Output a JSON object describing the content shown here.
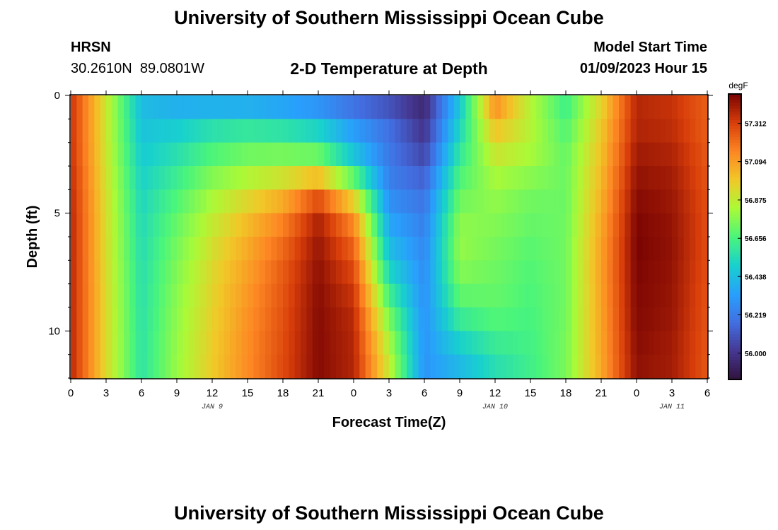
{
  "page": {
    "title_top": "University of Southern Mississippi Ocean Cube",
    "title_bottom": "University of Southern Mississippi Ocean Cube",
    "station_id": "HRSN",
    "station_coords": "30.2610N  89.0801W",
    "chart_title": "2-D Temperature at Depth",
    "model_label": "Model Start Time",
    "model_time": "01/09/2023 Hour 15"
  },
  "chart_data": {
    "type": "heatmap",
    "title": "2-D Temperature at Depth",
    "xlabel": "Forecast Time(Z)",
    "ylabel": "Depth (ft)",
    "x_tick_labels": [
      "0",
      "3",
      "6",
      "9",
      "12",
      "15",
      "18",
      "21",
      "0",
      "3",
      "6",
      "9",
      "12",
      "15",
      "18",
      "21",
      "0",
      "3",
      "6"
    ],
    "date_labels": [
      {
        "text": "JAN 9",
        "hour": 12
      },
      {
        "text": "JAN 10",
        "hour": 36
      },
      {
        "text": "JAN 11",
        "hour": 51
      }
    ],
    "x_range_hours": [
      0,
      54
    ],
    "y_tick_labels": [
      "0",
      "5",
      "10"
    ],
    "y_ticks": [
      0,
      5,
      10
    ],
    "ylim": [
      0,
      12
    ],
    "colorbar": {
      "unit": "degF",
      "tick_labels": [
        "56.000",
        "56.219",
        "56.438",
        "56.656",
        "56.875",
        "57.094",
        "57.312"
      ],
      "ticks": [
        56.0,
        56.219,
        56.438,
        56.656,
        56.875,
        57.094,
        57.312
      ],
      "range": [
        55.85,
        57.48
      ]
    },
    "hours": [
      0,
      3,
      6,
      9,
      12,
      15,
      18,
      21,
      24,
      27,
      30,
      33,
      36,
      39,
      42,
      45,
      48,
      51,
      54
    ],
    "depths_ft": [
      0,
      1,
      2,
      3,
      4,
      5,
      6,
      7,
      8,
      9,
      10,
      11,
      12
    ],
    "values": [
      [
        57.35,
        56.9,
        56.42,
        56.33,
        56.28,
        56.26,
        56.22,
        56.17,
        56.1,
        56.03,
        55.93,
        56.45,
        57.2,
        56.85,
        56.62,
        56.94,
        57.38,
        57.35,
        57.24
      ],
      [
        57.35,
        56.9,
        56.45,
        56.46,
        56.52,
        56.53,
        56.5,
        56.44,
        56.29,
        56.17,
        55.98,
        56.5,
        57.05,
        56.85,
        56.65,
        56.98,
        57.38,
        57.35,
        57.24
      ],
      [
        57.35,
        56.9,
        56.47,
        56.53,
        56.62,
        56.67,
        56.66,
        56.6,
        56.38,
        56.2,
        56.02,
        56.56,
        56.95,
        56.85,
        56.7,
        57.0,
        57.4,
        57.38,
        57.25
      ],
      [
        57.36,
        56.91,
        56.5,
        56.6,
        56.72,
        56.79,
        56.82,
        56.84,
        56.55,
        56.22,
        56.1,
        56.63,
        56.85,
        56.8,
        56.72,
        57.02,
        57.43,
        57.4,
        57.26
      ],
      [
        57.37,
        56.92,
        56.52,
        56.65,
        56.8,
        56.9,
        57.0,
        57.2,
        56.85,
        56.25,
        56.18,
        56.7,
        56.8,
        56.74,
        56.72,
        57.04,
        57.45,
        57.42,
        57.27
      ],
      [
        57.38,
        56.93,
        56.54,
        56.7,
        56.86,
        57.0,
        57.13,
        57.38,
        57.1,
        56.33,
        56.22,
        56.76,
        56.77,
        56.72,
        56.72,
        57.06,
        57.47,
        57.43,
        57.28
      ],
      [
        57.38,
        56.93,
        56.55,
        56.73,
        56.9,
        57.05,
        57.2,
        57.42,
        57.2,
        56.4,
        56.25,
        56.8,
        56.75,
        56.7,
        56.73,
        57.08,
        57.48,
        57.44,
        57.28
      ],
      [
        57.38,
        56.93,
        56.56,
        56.75,
        56.93,
        57.08,
        57.24,
        57.44,
        57.27,
        56.48,
        56.27,
        56.78,
        56.73,
        56.68,
        56.73,
        57.09,
        57.48,
        57.44,
        57.28
      ],
      [
        57.38,
        56.94,
        56.57,
        56.77,
        56.95,
        57.1,
        57.26,
        57.45,
        57.32,
        56.58,
        56.28,
        56.74,
        56.72,
        56.67,
        56.73,
        57.09,
        57.47,
        57.43,
        57.27
      ],
      [
        57.38,
        56.94,
        56.57,
        56.78,
        56.96,
        57.12,
        57.27,
        57.46,
        57.36,
        56.7,
        56.29,
        56.66,
        56.7,
        56.66,
        56.73,
        57.08,
        57.47,
        57.43,
        57.27
      ],
      [
        57.38,
        56.94,
        56.58,
        56.79,
        56.97,
        57.13,
        57.28,
        57.46,
        57.38,
        56.8,
        56.3,
        56.56,
        56.65,
        56.65,
        56.74,
        57.08,
        57.46,
        57.42,
        57.26
      ],
      [
        57.38,
        56.94,
        56.58,
        56.8,
        56.98,
        57.14,
        57.29,
        57.46,
        57.38,
        56.86,
        56.3,
        56.45,
        56.58,
        56.64,
        56.74,
        57.07,
        57.45,
        57.41,
        57.26
      ],
      [
        57.38,
        56.94,
        56.58,
        56.8,
        56.98,
        57.14,
        57.29,
        57.46,
        57.39,
        56.9,
        56.3,
        56.4,
        56.54,
        56.63,
        56.75,
        57.07,
        57.44,
        57.41,
        57.26
      ]
    ]
  }
}
